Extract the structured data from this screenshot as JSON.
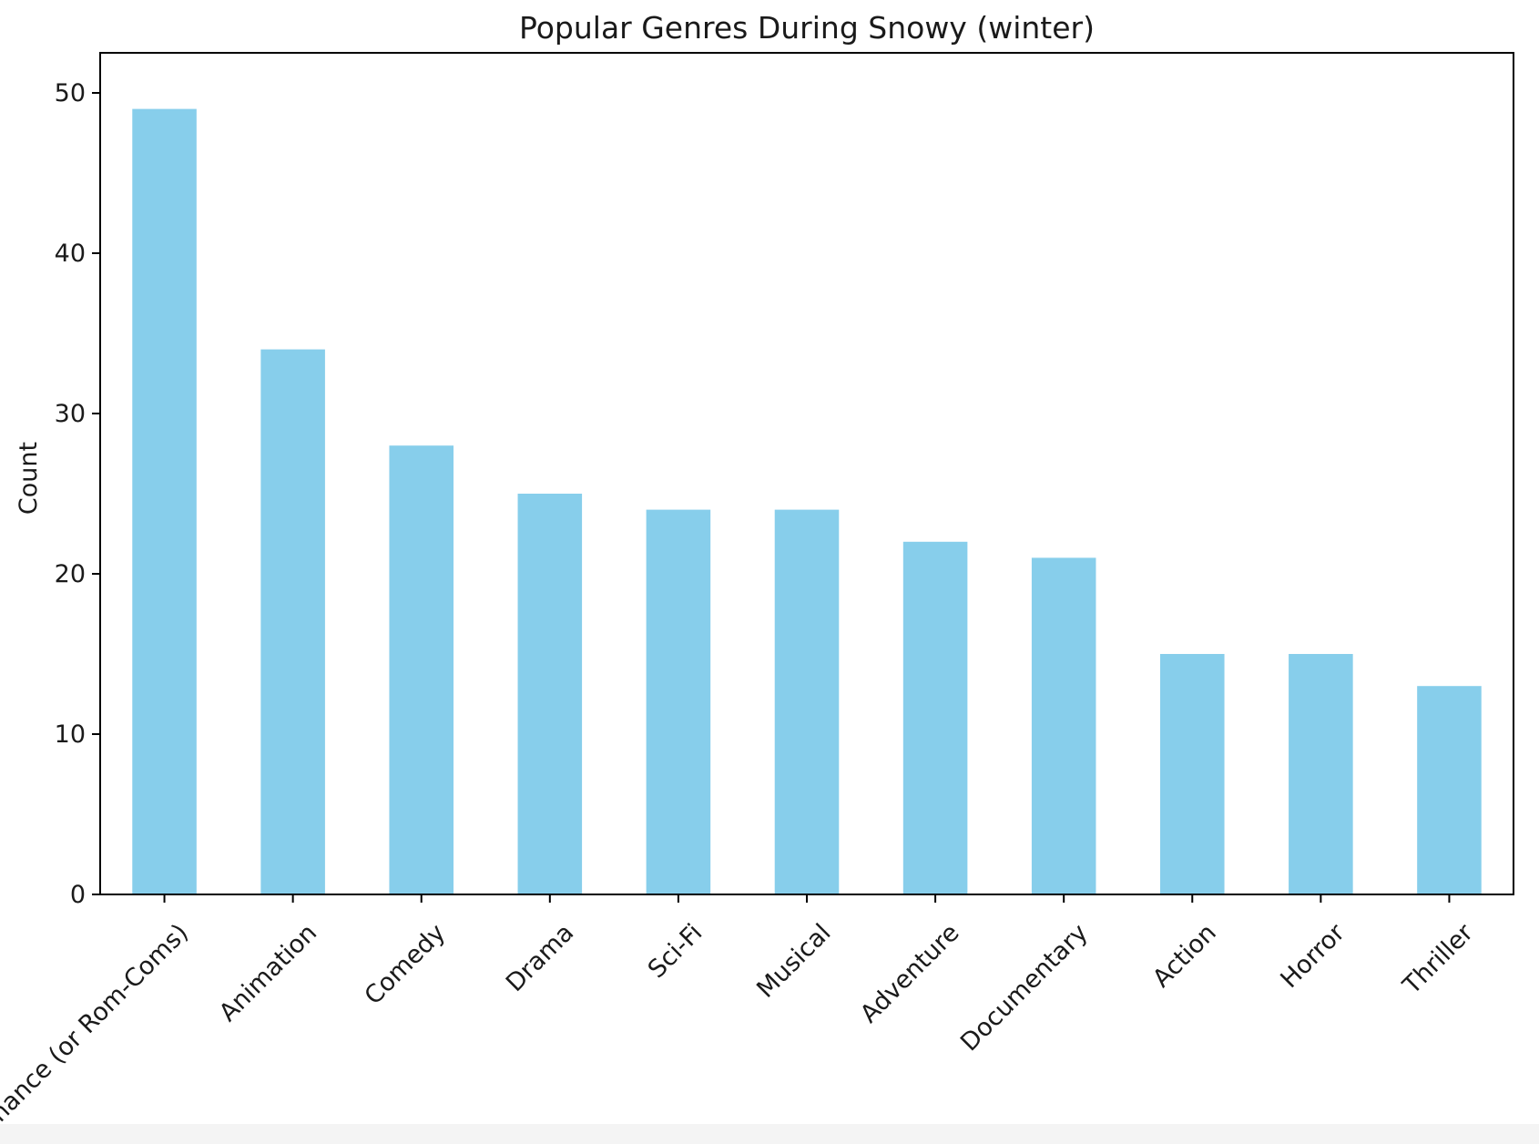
{
  "chart_data": {
    "type": "bar",
    "title": "Popular Genres During Snowy (winter)",
    "xlabel": "",
    "ylabel": "Count",
    "categories": [
      "Romance (or Rom-Coms)",
      "Animation",
      "Comedy",
      "Drama",
      "Sci-Fi",
      "Musical",
      "Adventure",
      "Documentary",
      "Action",
      "Horror",
      "Thriller"
    ],
    "values": [
      49,
      34,
      28,
      25,
      24,
      24,
      22,
      21,
      15,
      15,
      13
    ],
    "ylim": [
      0,
      52.5
    ],
    "yticks": [
      0,
      10,
      20,
      30,
      40,
      50
    ],
    "bar_color": "#87ceeb",
    "grid": false,
    "legend": "none"
  }
}
